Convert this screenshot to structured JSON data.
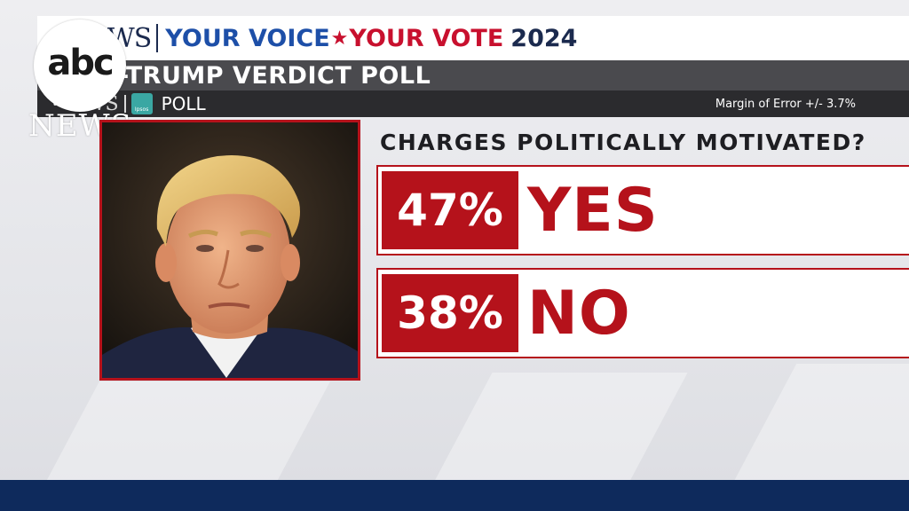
{
  "header": {
    "network_partial": "EWS",
    "voice_text": "YOUR VOICE",
    "vote_text": "YOUR VOTE",
    "year_text": "2024",
    "poll_title": "-TRUMP VERDICT POLL",
    "sub_network": "EWS",
    "sub_abc": "abc",
    "ipsos_label": "Ipsos",
    "poll_label": "POLL",
    "margin_of_error": "Margin of Error +/- 3.7%"
  },
  "logo": {
    "abc_text": "abc",
    "news_text": "NEWS"
  },
  "poll": {
    "question": "CHARGES POLITICALLY MOTIVATED?",
    "answers": [
      {
        "percent_text": "47%",
        "label": "YES",
        "value": 47
      },
      {
        "percent_text": "38%",
        "label": "NO",
        "value": 38
      }
    ]
  },
  "colors": {
    "accent_red": "#b5121b",
    "brand_blue": "#1d4fa8",
    "navy": "#0e2a5c",
    "header_dark": "#4a4a4e"
  },
  "icons": [
    "abc-logo-icon",
    "ipsos-logo-icon",
    "star-icon"
  ]
}
